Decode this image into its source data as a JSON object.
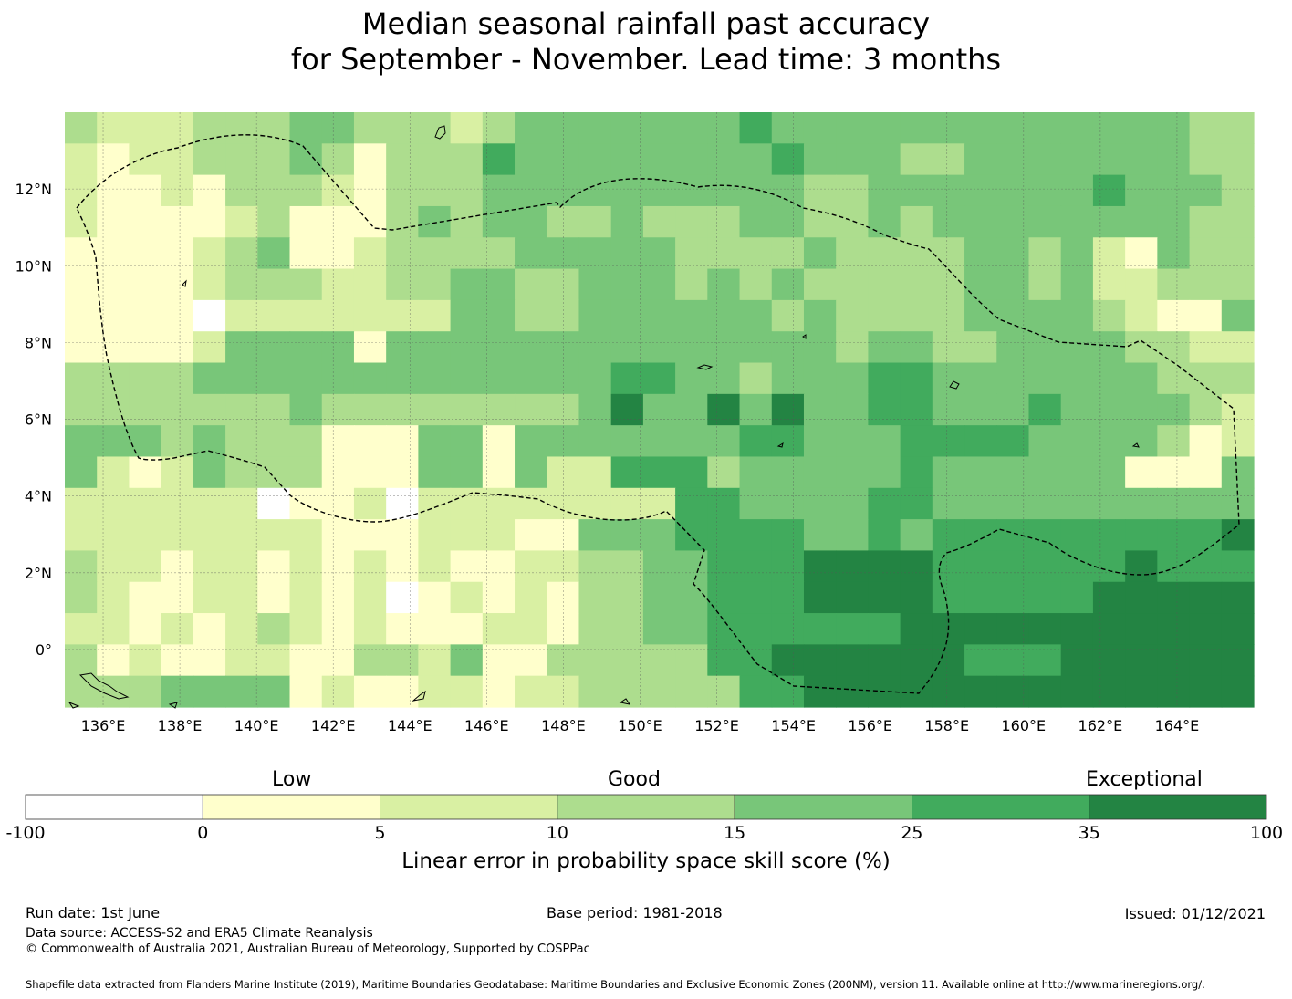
{
  "title_line1": "Median seasonal rainfall past accuracy",
  "title_line2": "for September - November. Lead time: 3 months",
  "map": {
    "lon_range": [
      135,
      166
    ],
    "lat_range": [
      -1.5,
      14
    ],
    "cell_size_deg": 0.833,
    "cols": 37,
    "rows": 19,
    "lon_ticks": [
      "136°E",
      "138°E",
      "140°E",
      "142°E",
      "144°E",
      "146°E",
      "148°E",
      "150°E",
      "152°E",
      "154°E",
      "156°E",
      "158°E",
      "160°E",
      "162°E",
      "164°E"
    ],
    "lon_tick_values": [
      136,
      138,
      140,
      142,
      144,
      146,
      148,
      150,
      152,
      154,
      156,
      158,
      160,
      162,
      164
    ],
    "lat_ticks": [
      "12°N",
      "10°N",
      "8°N",
      "6°N",
      "4°N",
      "2°N",
      "0°"
    ],
    "lat_tick_values": [
      12,
      10,
      8,
      6,
      4,
      2,
      0
    ],
    "gridlines": "dotted",
    "eez_boundary_style": "dashed black",
    "grid_classes": [
      "3222333443332344444445444444444444433",
      "2122333431333544444444544433444444433",
      "2112133321333444444444433444444454443",
      "2111123111343443343334433434444444433",
      "1111234112333344444333343333443421433",
      "1111233322334433444343433333443422333",
      "1111022222224433444444343333444432114",
      "1111244441444444444444443443344443322",
      "3333444444444444455443444554444444333",
      "3333333433333333464464644554445444432",
      "4443433311144144444445544455554444312",
      "4212433311144142255534444454444441114",
      "2222220112022222222554444554444444444",
      "2222222211122211444555544545555555556",
      "3221221212121122334455566665555556555",
      "3211221212012121334455566665555566666",
      "2212123212111221334455555566666666666",
      "3121122113324113333355666666555666666",
      "3334444121122122333335566666666666666"
    ]
  },
  "colorbar": {
    "categories": [
      "Low",
      "Good",
      "Exceptional"
    ],
    "boundaries": [
      "-100",
      "0",
      "5",
      "10",
      "15",
      "25",
      "35",
      "100"
    ],
    "boundary_values": [
      -100,
      0,
      5,
      10,
      15,
      25,
      35,
      100
    ],
    "colors": [
      "#ffffff",
      "#ffffcc",
      "#d9f0a3",
      "#addd8e",
      "#78c679",
      "#41ab5d",
      "#238443"
    ],
    "title": "Linear error in probability space skill score (%)"
  },
  "footer": {
    "run_date": "Run date: 1st June",
    "base_period": "Base period: 1981-2018",
    "issued": "Issued: 01/12/2021",
    "data_source": "Data source: ACCESS-S2 and ERA5 Climate Reanalysis",
    "copyright": "© Commonwealth of Australia 2021, Australian Bureau of Meteorology, Supported by COSPPac",
    "shapefile": "Shapefile data extracted from Flanders Marine Institute (2019), Maritime Boundaries Geodatabase: Maritime Boundaries and Exclusive Economic Zones (200NM), version 11. Available online at http://www.marineregions.org/."
  }
}
